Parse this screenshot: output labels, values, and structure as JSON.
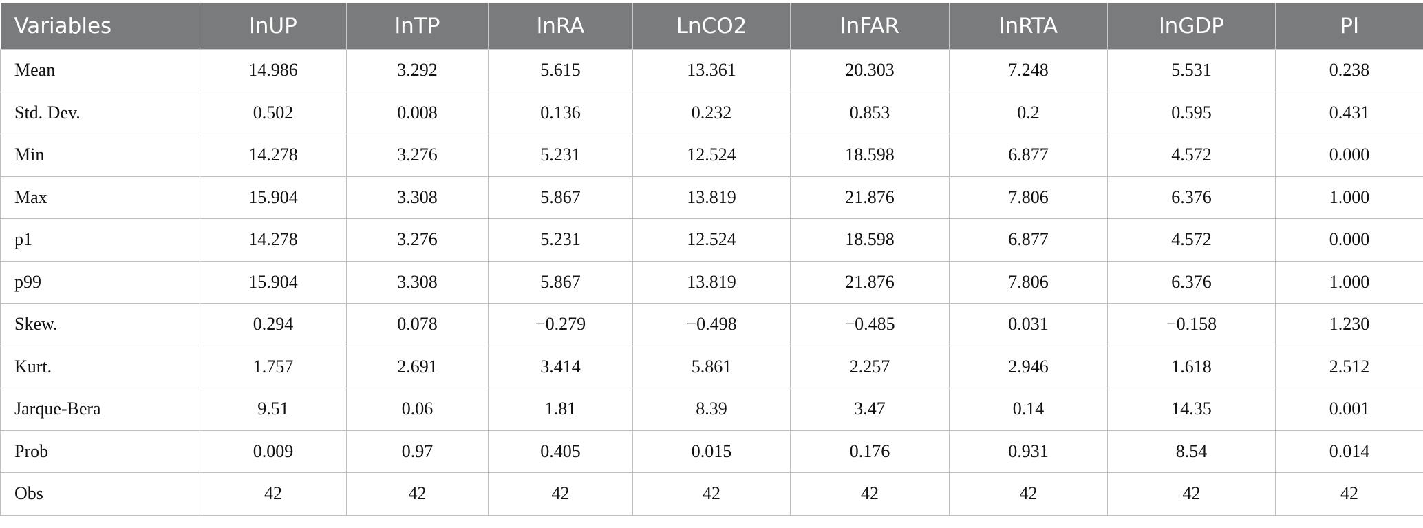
{
  "table": {
    "headers": [
      "Variables",
      "lnUP",
      "lnTP",
      "lnRA",
      "LnCO2",
      "lnFAR",
      "lnRTA",
      "lnGDP",
      "PI"
    ],
    "rows": [
      [
        "Mean",
        "14.986",
        "3.292",
        "5.615",
        "13.361",
        "20.303",
        "7.248",
        "5.531",
        "0.238"
      ],
      [
        "Std. Dev.",
        "0.502",
        "0.008",
        "0.136",
        "0.232",
        "0.853",
        "0.2",
        "0.595",
        "0.431"
      ],
      [
        "Min",
        "14.278",
        "3.276",
        "5.231",
        "12.524",
        "18.598",
        "6.877",
        "4.572",
        "0.000"
      ],
      [
        "Max",
        "15.904",
        "3.308",
        "5.867",
        "13.819",
        "21.876",
        "7.806",
        "6.376",
        "1.000"
      ],
      [
        "p1",
        "14.278",
        "3.276",
        "5.231",
        "12.524",
        "18.598",
        "6.877",
        "4.572",
        "0.000"
      ],
      [
        "p99",
        "15.904",
        "3.308",
        "5.867",
        "13.819",
        "21.876",
        "7.806",
        "6.376",
        "1.000"
      ],
      [
        "Skew.",
        "0.294",
        "0.078",
        "−0.279",
        "−0.498",
        "−0.485",
        "0.031",
        "−0.158",
        "1.230"
      ],
      [
        "Kurt.",
        "1.757",
        "2.691",
        "3.414",
        "5.861",
        "2.257",
        "2.946",
        "1.618",
        "2.512"
      ],
      [
        "Jarque-Bera",
        "9.51",
        "0.06",
        "1.81",
        "8.39",
        "3.47",
        "0.14",
        "14.35",
        "0.001"
      ],
      [
        "Prob",
        "0.009",
        "0.97",
        "0.405",
        "0.015",
        "0.176",
        "0.931",
        "8.54",
        "0.014"
      ],
      [
        "Obs",
        "42",
        "42",
        "42",
        "42",
        "42",
        "42",
        "42",
        "42"
      ]
    ]
  }
}
